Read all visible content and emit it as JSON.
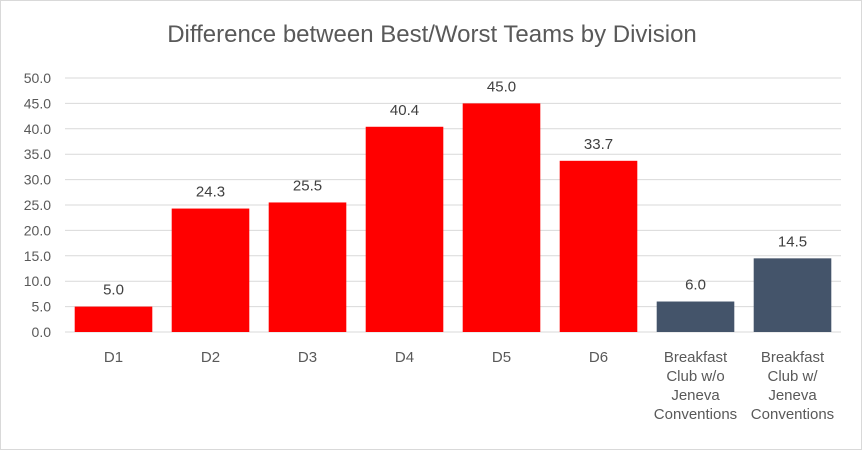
{
  "chart_data": {
    "type": "bar",
    "title": "Difference between Best/Worst Teams by Division",
    "categories": [
      [
        "D1"
      ],
      [
        "D2"
      ],
      [
        "D3"
      ],
      [
        "D4"
      ],
      [
        "D5"
      ],
      [
        "D6"
      ],
      [
        "Breakfast",
        "Club w/o",
        "Jeneva",
        "Conventions"
      ],
      [
        "Breakfast",
        "Club w/",
        "Jeneva",
        "Conventions"
      ]
    ],
    "values": [
      5.0,
      24.3,
      25.5,
      40.4,
      45.0,
      33.7,
      6.0,
      14.5
    ],
    "data_labels": [
      "5.0",
      "24.3",
      "25.5",
      "40.4",
      "45.0",
      "33.7",
      "6.0",
      "14.5"
    ],
    "bar_colors": [
      "#ff0000",
      "#ff0000",
      "#ff0000",
      "#ff0000",
      "#ff0000",
      "#ff0000",
      "#44546a",
      "#44546a"
    ],
    "yticks": [
      "0.0",
      "5.0",
      "10.0",
      "15.0",
      "20.0",
      "25.0",
      "30.0",
      "35.0",
      "40.0",
      "45.0",
      "50.0"
    ],
    "ylim": [
      0,
      50
    ],
    "xlabel": "",
    "ylabel": "",
    "grid": true,
    "legend": "none"
  }
}
